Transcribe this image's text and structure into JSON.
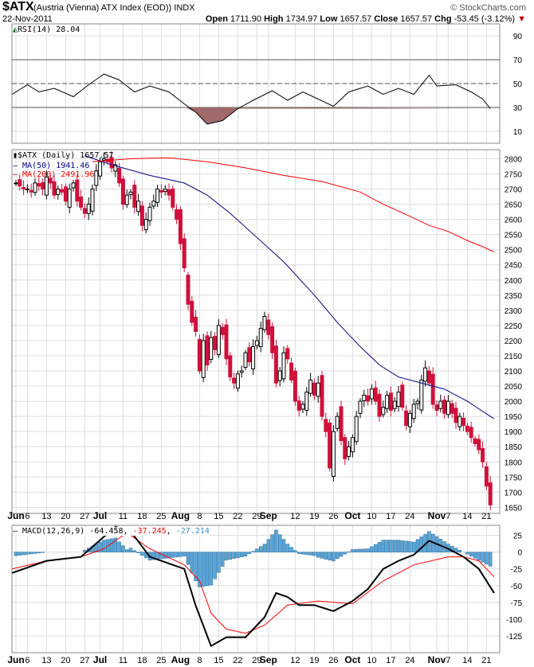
{
  "header": {
    "symbol": "$ATX",
    "description": "(Austria (Vienna) ATX Index (EOD))",
    "exchange": "INDX",
    "watermark": "© StockCharts.com",
    "date": "22-Nov-2011",
    "open_label": "Open",
    "open": "1711.90",
    "high_label": "High",
    "high": "1734.97",
    "low_label": "Low",
    "low": "1657.57",
    "close_label": "Close",
    "close": "1657.57",
    "chg_label": "Chg",
    "chg": "-53.45 (-3.12%)",
    "chg_icon": "down-triangle-icon"
  },
  "chart_data": [
    {
      "type": "line",
      "name": "RSI",
      "legend": "RSI(14) 28.04",
      "yticks": [
        10,
        30,
        50,
        70,
        90
      ],
      "ylim": [
        0,
        100
      ],
      "levels": [
        30,
        50,
        70
      ],
      "points": [
        [
          -1,
          41
        ],
        [
          3,
          49
        ],
        [
          6,
          43
        ],
        [
          10,
          46
        ],
        [
          15,
          39
        ],
        [
          19,
          49
        ],
        [
          23,
          58
        ],
        [
          27,
          53
        ],
        [
          31,
          43
        ],
        [
          35,
          48
        ],
        [
          40,
          43
        ],
        [
          44,
          33
        ],
        [
          47,
          26
        ],
        [
          50,
          16
        ],
        [
          54,
          19
        ],
        [
          58,
          29
        ],
        [
          62,
          36
        ],
        [
          67,
          44
        ],
        [
          71,
          36
        ],
        [
          75,
          43
        ],
        [
          79,
          37
        ],
        [
          83,
          31
        ],
        [
          87,
          43
        ],
        [
          92,
          48
        ],
        [
          96,
          41
        ],
        [
          100,
          46
        ],
        [
          104,
          41
        ],
        [
          108,
          57
        ],
        [
          110,
          48
        ],
        [
          115,
          49
        ],
        [
          119,
          43
        ],
        [
          122,
          37
        ],
        [
          124,
          29
        ]
      ]
    },
    {
      "type": "candlestick",
      "name": "Price",
      "legend": "$ATX (Daily) 1657.57",
      "ylim": [
        1630,
        2830
      ],
      "yticks": [
        1650,
        1700,
        1750,
        1800,
        1850,
        1900,
        1950,
        2000,
        2050,
        2100,
        2150,
        2200,
        2250,
        2300,
        2350,
        2400,
        2450,
        2500,
        2550,
        2600,
        2650,
        2700,
        2750,
        2800
      ],
      "closes": [
        2720,
        2710,
        2700,
        2700,
        2690,
        2720,
        2710,
        2700,
        2740,
        2720,
        2680,
        2700,
        2690,
        2660,
        2700,
        2720,
        2660,
        2640,
        2620,
        2650,
        2700,
        2760,
        2790,
        2800,
        2790,
        2770,
        2780,
        2720,
        2650,
        2680,
        2690,
        2640,
        2660,
        2580,
        2600,
        2640,
        2660,
        2700,
        2690,
        2700,
        2680,
        2640,
        2600,
        2520,
        2440,
        2320,
        2260,
        2230,
        2100,
        2200,
        2120,
        2210,
        2170,
        2250,
        2220,
        2140,
        2080,
        2060,
        2090,
        2100,
        2160,
        2130,
        2180,
        2200,
        2240,
        2280,
        2220,
        2160,
        2060,
        2100,
        2160,
        2140,
        2070,
        2000,
        1970,
        1990,
        2030,
        2070,
        2020,
        2060,
        1950,
        1900,
        1780,
        1900,
        1950,
        1870,
        1810,
        1850,
        1880,
        1950,
        2000,
        2020,
        2000,
        2040,
        2000,
        1950,
        1980,
        2020,
        1970,
        2000,
        2030,
        1980,
        1920,
        1960,
        1990,
        2000,
        2070,
        2110,
        2060,
        1990,
        1970,
        2000,
        1960,
        2000,
        1960,
        1930,
        1950,
        1920,
        1900,
        1880,
        1860,
        1840,
        1800,
        1720,
        1658
      ],
      "ma50": {
        "legend": "MA(50) 1941.46",
        "color": "#00008b",
        "points": [
          [
            18,
            2810
          ],
          [
            25,
            2780
          ],
          [
            35,
            2745
          ],
          [
            44,
            2720
          ],
          [
            50,
            2680
          ],
          [
            56,
            2620
          ],
          [
            63,
            2540
          ],
          [
            70,
            2460
          ],
          [
            78,
            2350
          ],
          [
            84,
            2260
          ],
          [
            90,
            2180
          ],
          [
            95,
            2120
          ],
          [
            100,
            2080
          ],
          [
            106,
            2060
          ],
          [
            112,
            2040
          ],
          [
            118,
            2000
          ],
          [
            121,
            1975
          ],
          [
            125,
            1942
          ]
        ]
      },
      "ma200": {
        "legend": "MA(200) 2491.96",
        "color": "#ff0000",
        "points": [
          [
            20,
            2790
          ],
          [
            30,
            2800
          ],
          [
            40,
            2803
          ],
          [
            50,
            2790
          ],
          [
            60,
            2770
          ],
          [
            70,
            2745
          ],
          [
            80,
            2725
          ],
          [
            90,
            2690
          ],
          [
            96,
            2650
          ],
          [
            103,
            2610
          ],
          [
            108,
            2580
          ],
          [
            113,
            2560
          ],
          [
            118,
            2530
          ],
          [
            122,
            2510
          ],
          [
            125,
            2492
          ]
        ]
      }
    },
    {
      "type": "line",
      "name": "MACD",
      "legend": "MACD(12,26,9)",
      "macd_value": "-64.458",
      "signal_value": "-37.245",
      "hist_value": "-27.214",
      "ylim": [
        -150,
        40
      ],
      "yticks": [
        25,
        0,
        -25,
        -50,
        -75,
        -100,
        -125
      ],
      "macd": [
        [
          -1,
          -31
        ],
        [
          8,
          -13
        ],
        [
          17,
          -7
        ],
        [
          26,
          38
        ],
        [
          30,
          31
        ],
        [
          35,
          -7
        ],
        [
          44,
          -25
        ],
        [
          47,
          -80
        ],
        [
          51,
          -140
        ],
        [
          55,
          -127
        ],
        [
          60,
          -127
        ],
        [
          65,
          -97
        ],
        [
          68,
          -61
        ],
        [
          71,
          -67
        ],
        [
          74,
          -79
        ],
        [
          78,
          -79
        ],
        [
          83,
          -88
        ],
        [
          88,
          -73
        ],
        [
          92,
          -55
        ],
        [
          96,
          -25
        ],
        [
          100,
          -13
        ],
        [
          104,
          -4
        ],
        [
          108,
          17
        ],
        [
          113,
          5
        ],
        [
          117,
          -7
        ],
        [
          121,
          -25
        ],
        [
          125,
          -61
        ]
      ],
      "signal": [
        [
          -1,
          -25
        ],
        [
          8,
          -13
        ],
        [
          17,
          -7
        ],
        [
          23,
          5
        ],
        [
          29,
          29
        ],
        [
          35,
          5
        ],
        [
          44,
          -19
        ],
        [
          48,
          -43
        ],
        [
          51,
          -91
        ],
        [
          55,
          -115
        ],
        [
          60,
          -121
        ],
        [
          65,
          -109
        ],
        [
          71,
          -79
        ],
        [
          79,
          -73
        ],
        [
          88,
          -77
        ],
        [
          96,
          -43
        ],
        [
          104,
          -19
        ],
        [
          113,
          -7
        ],
        [
          117,
          -7
        ],
        [
          121,
          -13
        ],
        [
          125,
          -37
        ]
      ]
    }
  ],
  "xaxis": [
    [
      "Jun",
      0,
      true
    ],
    [
      "6",
      3,
      false
    ],
    [
      "13",
      8,
      false
    ],
    [
      "20",
      13,
      false
    ],
    [
      "27",
      18,
      false
    ],
    [
      "Jul",
      22,
      true
    ],
    [
      "11",
      28,
      false
    ],
    [
      "18",
      33,
      false
    ],
    [
      "25",
      38,
      false
    ],
    [
      "Aug",
      43,
      true
    ],
    [
      "8",
      48,
      false
    ],
    [
      "15",
      53,
      false
    ],
    [
      "22",
      58,
      false
    ],
    [
      "29",
      63,
      false
    ],
    [
      "Sep",
      66,
      true
    ],
    [
      "12",
      73,
      false
    ],
    [
      "19",
      78,
      false
    ],
    [
      "26",
      83,
      false
    ],
    [
      "Oct",
      88,
      true
    ],
    [
      "10",
      93,
      false
    ],
    [
      "17",
      98,
      false
    ],
    [
      "24",
      103,
      false
    ],
    [
      "Nov",
      110,
      true
    ],
    [
      "7",
      113,
      false
    ],
    [
      "14",
      118,
      false
    ],
    [
      "21",
      123,
      false
    ]
  ]
}
